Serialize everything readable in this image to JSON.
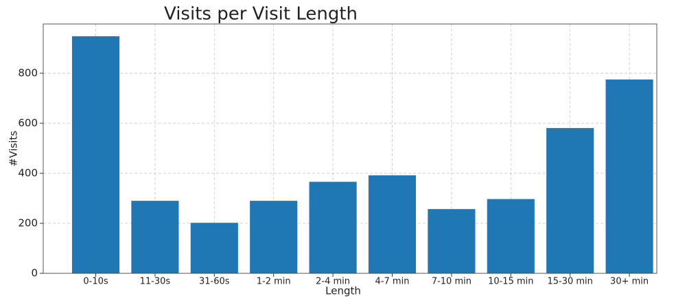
{
  "chart_data": {
    "type": "bar",
    "title": "Visits per Visit Length",
    "xlabel": "Length",
    "ylabel": "#Visits",
    "categories": [
      "0-10s",
      "11-30s",
      "31-60s",
      "1-2 min",
      "2-4 min",
      "4-7 min",
      "7-10 min",
      "10-15 min",
      "15-30 min",
      "30+ min"
    ],
    "values": [
      948,
      290,
      202,
      290,
      366,
      392,
      257,
      297,
      581,
      775
    ],
    "color": "#1f77b4",
    "ylim": [
      0,
      997
    ],
    "yticks": [
      0,
      200,
      400,
      600,
      800
    ],
    "grid": true
  }
}
